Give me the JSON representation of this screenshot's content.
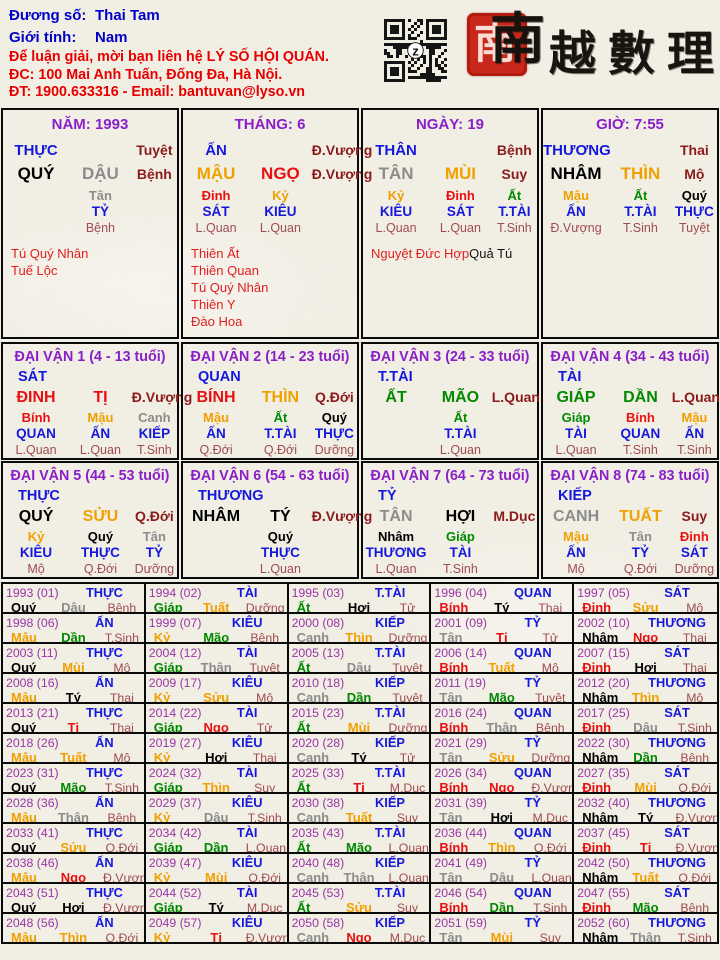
{
  "colors": {
    "header_blue": "#0000C8",
    "header_red": "#E80000",
    "title_purple": "#8A1FC8",
    "year_purple": "#9A35A8",
    "god_blue": "#1418DC",
    "stage_maroon": "#8B1A1A",
    "stage_rose": "#A04C50",
    "star_red": "#E02020",
    "wood": "#018A01",
    "fire": "#E81010",
    "earth": "#F0A000",
    "metal": "#8C8C8C",
    "water": "#000000",
    "seal_red": "#C8271B"
  },
  "header": {
    "name_label": "Đương số:",
    "name_value": "Thai Tam",
    "gender_label": "Giới tính:",
    "gender_value": "Nam",
    "contact_line1": "Để luận giải, mời bạn liên hệ LÝ SỐ HỘI QUÁN.",
    "contact_line2": "ĐC: 100 Mai Anh Tuấn, Đống Đa, Hà Nội.",
    "contact_line3": "ĐT: 1900.633316 - Email: bantuvan@lyso.vn",
    "qr_center_letter": "z",
    "logo_seal_char": "南",
    "logo_text": "越數理"
  },
  "element_of": {
    "giáp": "wood",
    "ất": "wood",
    "bính": "fire",
    "đinh": "fire",
    "mậu": "earth",
    "kỷ": "earth",
    "canh": "metal",
    "tân": "metal",
    "nhâm": "water",
    "quý": "water",
    "tý": "water",
    "sửu": "earth",
    "dần": "wood",
    "mão": "wood",
    "thìn": "earth",
    "tị": "fire",
    "ngọ": "fire",
    "mùi": "earth",
    "thân": "metal",
    "dậu": "metal",
    "tuất": "earth",
    "hợi": "water"
  },
  "pillars": [
    {
      "title": "NĂM: 1993",
      "god": "THỰC",
      "month_stage": "Tuyệt",
      "stem": "QUÝ",
      "branch": "DẬU",
      "self_stage": "Bệnh",
      "hidden": [
        {
          "col": 2,
          "stem": "Tân",
          "god": "TỶ",
          "stage": "Bệnh"
        }
      ],
      "stars": [
        {
          "text": "Tú Quý Nhân",
          "color": "red"
        },
        {
          "text": "Tuế Lộc",
          "color": "red"
        }
      ],
      "stars_inline": false
    },
    {
      "title": "THÁNG: 6",
      "god": "ẤN",
      "month_stage": "Đ.Vượng",
      "stem": "MẬU",
      "branch": "NGỌ",
      "self_stage": "Đ.Vượng",
      "hidden": [
        {
          "col": 1,
          "stem": "Đinh",
          "god": "SÁT",
          "stage": "L.Quan"
        },
        {
          "col": 2,
          "stem": "Kỷ",
          "god": "KIÊU",
          "stage": "L.Quan"
        }
      ],
      "stars": [
        {
          "text": "Thiên Ất",
          "color": "red"
        },
        {
          "text": "Thiên Quan",
          "color": "red"
        },
        {
          "text": "Tú Quý Nhân",
          "color": "red"
        },
        {
          "text": "Thiên Y",
          "color": "red"
        },
        {
          "text": "Đào Hoa",
          "color": "red"
        }
      ],
      "stars_inline": false
    },
    {
      "title": "NGÀY: 19",
      "god": "THÂN",
      "month_stage": "Bệnh",
      "stem": "TÂN",
      "branch": "MÙI",
      "self_stage": "Suy",
      "hidden": [
        {
          "col": 1,
          "stem": "Kỷ",
          "god": "KIÊU",
          "stage": "L.Quan"
        },
        {
          "col": 2,
          "stem": "Đinh",
          "god": "SÁT",
          "stage": "L.Quan"
        },
        {
          "col": 3,
          "stem": "Ất",
          "god": "T.TÀI",
          "stage": "T.Sinh"
        }
      ],
      "stars": [
        {
          "text": "Nguyệt Đức Hợp",
          "color": "red"
        },
        {
          "text": "Quả Tú",
          "color": "black"
        }
      ],
      "stars_inline": true
    },
    {
      "title": "GIỜ: 7:55",
      "god": "THƯƠNG",
      "month_stage": "Thai",
      "stem": "NHÂM",
      "branch": "THÌN",
      "self_stage": "Mộ",
      "hidden": [
        {
          "col": 1,
          "stem": "Mậu",
          "god": "ẤN",
          "stage": "Đ.Vượng"
        },
        {
          "col": 2,
          "stem": "Ất",
          "god": "T.TÀI",
          "stage": "T.Sinh"
        },
        {
          "col": 3,
          "stem": "Quý",
          "god": "THỰC",
          "stage": "Tuyệt"
        }
      ],
      "stars": [],
      "stars_inline": false
    }
  ],
  "dai_van": [
    {
      "title": "ĐẠI VẬN 1 (4 - 13 tuổi)",
      "god": "SÁT",
      "stem": "ĐINH",
      "branch": "TỊ",
      "stage": "Đ.Vượng",
      "hidden": [
        {
          "col": 1,
          "stem": "Bính",
          "god": "QUAN",
          "stage": "L.Quan"
        },
        {
          "col": 2,
          "stem": "Mậu",
          "god": "ẤN",
          "stage": "L.Quan"
        },
        {
          "col": 3,
          "stem": "Canh",
          "god": "KIẾP",
          "stage": "T.Sinh"
        }
      ]
    },
    {
      "title": "ĐẠI VẬN 2 (14 - 23 tuổi)",
      "god": "QUAN",
      "stem": "BÍNH",
      "branch": "THÌN",
      "stage": "Q.Đới",
      "hidden": [
        {
          "col": 1,
          "stem": "Mậu",
          "god": "ẤN",
          "stage": "Q.Đới"
        },
        {
          "col": 2,
          "stem": "Ất",
          "god": "T.TÀI",
          "stage": "Q.Đới"
        },
        {
          "col": 3,
          "stem": "Quý",
          "god": "THỰC",
          "stage": "Dưỡng"
        }
      ]
    },
    {
      "title": "ĐẠI VẬN 3 (24 - 33 tuổi)",
      "god": "T.TÀI",
      "stem": "ẤT",
      "branch": "MÃO",
      "stage": "L.Quan",
      "hidden": [
        {
          "col": 2,
          "stem": "Ất",
          "god": "T.TÀI",
          "stage": "L.Quan"
        }
      ]
    },
    {
      "title": "ĐẠI VẬN 4 (34 - 43 tuổi)",
      "god": "TÀI",
      "stem": "GIÁP",
      "branch": "DẦN",
      "stage": "L.Quan",
      "hidden": [
        {
          "col": 1,
          "stem": "Giáp",
          "god": "TÀI",
          "stage": "L.Quan"
        },
        {
          "col": 2,
          "stem": "Bính",
          "god": "QUAN",
          "stage": "T.Sinh"
        },
        {
          "col": 3,
          "stem": "Mậu",
          "god": "ẤN",
          "stage": "T.Sinh"
        }
      ]
    },
    {
      "title": "ĐẠI VẬN 5 (44 - 53 tuổi)",
      "god": "THỰC",
      "stem": "QUÝ",
      "branch": "SỬU",
      "stage": "Q.Đới",
      "hidden": [
        {
          "col": 1,
          "stem": "Kỷ",
          "god": "KIÊU",
          "stage": "Mộ"
        },
        {
          "col": 2,
          "stem": "Quý",
          "god": "THỰC",
          "stage": "Q.Đới"
        },
        {
          "col": 3,
          "stem": "Tân",
          "god": "TỶ",
          "stage": "Dưỡng"
        }
      ]
    },
    {
      "title": "ĐẠI VẬN 6 (54 - 63 tuổi)",
      "god": "THƯƠNG",
      "stem": "NHÂM",
      "branch": "TÝ",
      "stage": "Đ.Vượng",
      "hidden": [
        {
          "col": 2,
          "stem": "Quý",
          "god": "THỰC",
          "stage": "L.Quan"
        }
      ]
    },
    {
      "title": "ĐẠI VẬN 7 (64 - 73 tuổi)",
      "god": "TỶ",
      "stem": "TÂN",
      "branch": "HỢI",
      "stage": "M.Dục",
      "hidden": [
        {
          "col": 1,
          "stem": "Nhâm",
          "god": "THƯƠNG",
          "stage": "L.Quan"
        },
        {
          "col": 2,
          "stem": "Giáp",
          "god": "TÀI",
          "stage": "T.Sinh"
        }
      ]
    },
    {
      "title": "ĐẠI VẬN 8 (74 - 83 tuổi)",
      "god": "KIẾP",
      "stem": "CANH",
      "branch": "TUẤT",
      "stage": "Suy",
      "hidden": [
        {
          "col": 1,
          "stem": "Mậu",
          "god": "ẤN",
          "stage": "Mộ"
        },
        {
          "col": 2,
          "stem": "Tân",
          "god": "TỶ",
          "stage": "Q.Đới"
        },
        {
          "col": 3,
          "stem": "Đinh",
          "god": "SÁT",
          "stage": "Dưỡng"
        }
      ]
    }
  ],
  "years": {
    "columns": 5,
    "cells": [
      [
        "1993 (01)",
        "THỰC",
        "Quý",
        "Dậu",
        "Bệnh"
      ],
      [
        "1994 (02)",
        "TÀI",
        "Giáp",
        "Tuất",
        "Dưỡng"
      ],
      [
        "1995 (03)",
        "T.TÀI",
        "Ất",
        "Hợi",
        "Tử"
      ],
      [
        "1996 (04)",
        "QUAN",
        "Bính",
        "Tý",
        "Thai"
      ],
      [
        "1997 (05)",
        "SÁT",
        "Đinh",
        "Sửu",
        "Mộ"
      ],
      [
        "1998 (06)",
        "ẤN",
        "Mậu",
        "Dần",
        "T.Sinh"
      ],
      [
        "1999 (07)",
        "KIÊU",
        "Kỷ",
        "Mão",
        "Bệnh"
      ],
      [
        "2000 (08)",
        "KIẾP",
        "Canh",
        "Thìn",
        "Dưỡng"
      ],
      [
        "2001 (09)",
        "TỶ",
        "Tân",
        "Tị",
        "Tử"
      ],
      [
        "2002 (10)",
        "THƯƠNG",
        "Nhâm",
        "Ngọ",
        "Thai"
      ],
      [
        "2003 (11)",
        "THỰC",
        "Quý",
        "Mùi",
        "Mộ"
      ],
      [
        "2004 (12)",
        "TÀI",
        "Giáp",
        "Thân",
        "Tuyệt"
      ],
      [
        "2005 (13)",
        "T.TÀI",
        "Ất",
        "Dậu",
        "Tuyệt"
      ],
      [
        "2006 (14)",
        "QUAN",
        "Bính",
        "Tuất",
        "Mộ"
      ],
      [
        "2007 (15)",
        "SÁT",
        "Đinh",
        "Hợi",
        "Thai"
      ],
      [
        "2008 (16)",
        "ẤN",
        "Mậu",
        "Tý",
        "Thai"
      ],
      [
        "2009 (17)",
        "KIÊU",
        "Kỷ",
        "Sửu",
        "Mộ"
      ],
      [
        "2010 (18)",
        "KIẾP",
        "Canh",
        "Dần",
        "Tuyệt"
      ],
      [
        "2011 (19)",
        "TỶ",
        "Tân",
        "Mão",
        "Tuyệt"
      ],
      [
        "2012 (20)",
        "THƯƠNG",
        "Nhâm",
        "Thìn",
        "Mộ"
      ],
      [
        "2013 (21)",
        "THỰC",
        "Quý",
        "Tị",
        "Thai"
      ],
      [
        "2014 (22)",
        "TÀI",
        "Giáp",
        "Ngọ",
        "Tử"
      ],
      [
        "2015 (23)",
        "T.TÀI",
        "Ất",
        "Mùi",
        "Dưỡng"
      ],
      [
        "2016 (24)",
        "QUAN",
        "Bính",
        "Thân",
        "Bệnh"
      ],
      [
        "2017 (25)",
        "SÁT",
        "Đinh",
        "Dậu",
        "T.Sinh"
      ],
      [
        "2018 (26)",
        "ẤN",
        "Mậu",
        "Tuất",
        "Mộ"
      ],
      [
        "2019 (27)",
        "KIÊU",
        "Kỷ",
        "Hợi",
        "Thai"
      ],
      [
        "2020 (28)",
        "KIẾP",
        "Canh",
        "Tý",
        "Tử"
      ],
      [
        "2021 (29)",
        "TỶ",
        "Tân",
        "Sửu",
        "Dưỡng"
      ],
      [
        "2022 (30)",
        "THƯƠNG",
        "Nhâm",
        "Dần",
        "Bệnh"
      ],
      [
        "2023 (31)",
        "THỰC",
        "Quý",
        "Mão",
        "T.Sinh"
      ],
      [
        "2024 (32)",
        "TÀI",
        "Giáp",
        "Thìn",
        "Suy"
      ],
      [
        "2025 (33)",
        "T.TÀI",
        "Ất",
        "Tị",
        "M.Dục"
      ],
      [
        "2026 (34)",
        "QUAN",
        "Bính",
        "Ngọ",
        "Đ.Vượng"
      ],
      [
        "2027 (35)",
        "SÁT",
        "Đinh",
        "Mùi",
        "Q.Đới"
      ],
      [
        "2028 (36)",
        "ẤN",
        "Mậu",
        "Thân",
        "Bệnh"
      ],
      [
        "2029 (37)",
        "KIÊU",
        "Kỷ",
        "Dậu",
        "T.Sinh"
      ],
      [
        "2030 (38)",
        "KIẾP",
        "Canh",
        "Tuất",
        "Suy"
      ],
      [
        "2031 (39)",
        "TỶ",
        "Tân",
        "Hợi",
        "M.Dục"
      ],
      [
        "2032 (40)",
        "THƯƠNG",
        "Nhâm",
        "Tý",
        "Đ.Vượng"
      ],
      [
        "2033 (41)",
        "THỰC",
        "Quý",
        "Sửu",
        "Q.Đới"
      ],
      [
        "2034 (42)",
        "TÀI",
        "Giáp",
        "Dần",
        "L.Quan"
      ],
      [
        "2035 (43)",
        "T.TÀI",
        "Ất",
        "Mão",
        "L.Quan"
      ],
      [
        "2036 (44)",
        "QUAN",
        "Bính",
        "Thìn",
        "Q.Đới"
      ],
      [
        "2037 (45)",
        "SÁT",
        "Đinh",
        "Tị",
        "Đ.Vượng"
      ],
      [
        "2038 (46)",
        "ẤN",
        "Mậu",
        "Ngọ",
        "Đ.Vượng"
      ],
      [
        "2039 (47)",
        "KIÊU",
        "Kỷ",
        "Mùi",
        "Q.Đới"
      ],
      [
        "2040 (48)",
        "KIẾP",
        "Canh",
        "Thân",
        "L.Quan"
      ],
      [
        "2041 (49)",
        "TỶ",
        "Tân",
        "Dậu",
        "L.Quan"
      ],
      [
        "2042 (50)",
        "THƯƠNG",
        "Nhâm",
        "Tuất",
        "Q.Đới"
      ],
      [
        "2043 (51)",
        "THỰC",
        "Quý",
        "Hợi",
        "Đ.Vượng"
      ],
      [
        "2044 (52)",
        "TÀI",
        "Giáp",
        "Tý",
        "M.Dục"
      ],
      [
        "2045 (53)",
        "T.TÀI",
        "Ất",
        "Sửu",
        "Suy"
      ],
      [
        "2046 (54)",
        "QUAN",
        "Bính",
        "Dần",
        "T.Sinh"
      ],
      [
        "2047 (55)",
        "SÁT",
        "Đinh",
        "Mão",
        "Bệnh"
      ],
      [
        "2048 (56)",
        "ẤN",
        "Mậu",
        "Thìn",
        "Q.Đới"
      ],
      [
        "2049 (57)",
        "KIÊU",
        "Kỷ",
        "Tị",
        "Đ.Vượng"
      ],
      [
        "2050 (58)",
        "KIẾP",
        "Canh",
        "Ngọ",
        "M.Dục"
      ],
      [
        "2051 (59)",
        "TỶ",
        "Tân",
        "Mùi",
        "Suy"
      ],
      [
        "2052 (60)",
        "THƯƠNG",
        "Nhâm",
        "Thân",
        "T.Sinh"
      ]
    ]
  }
}
